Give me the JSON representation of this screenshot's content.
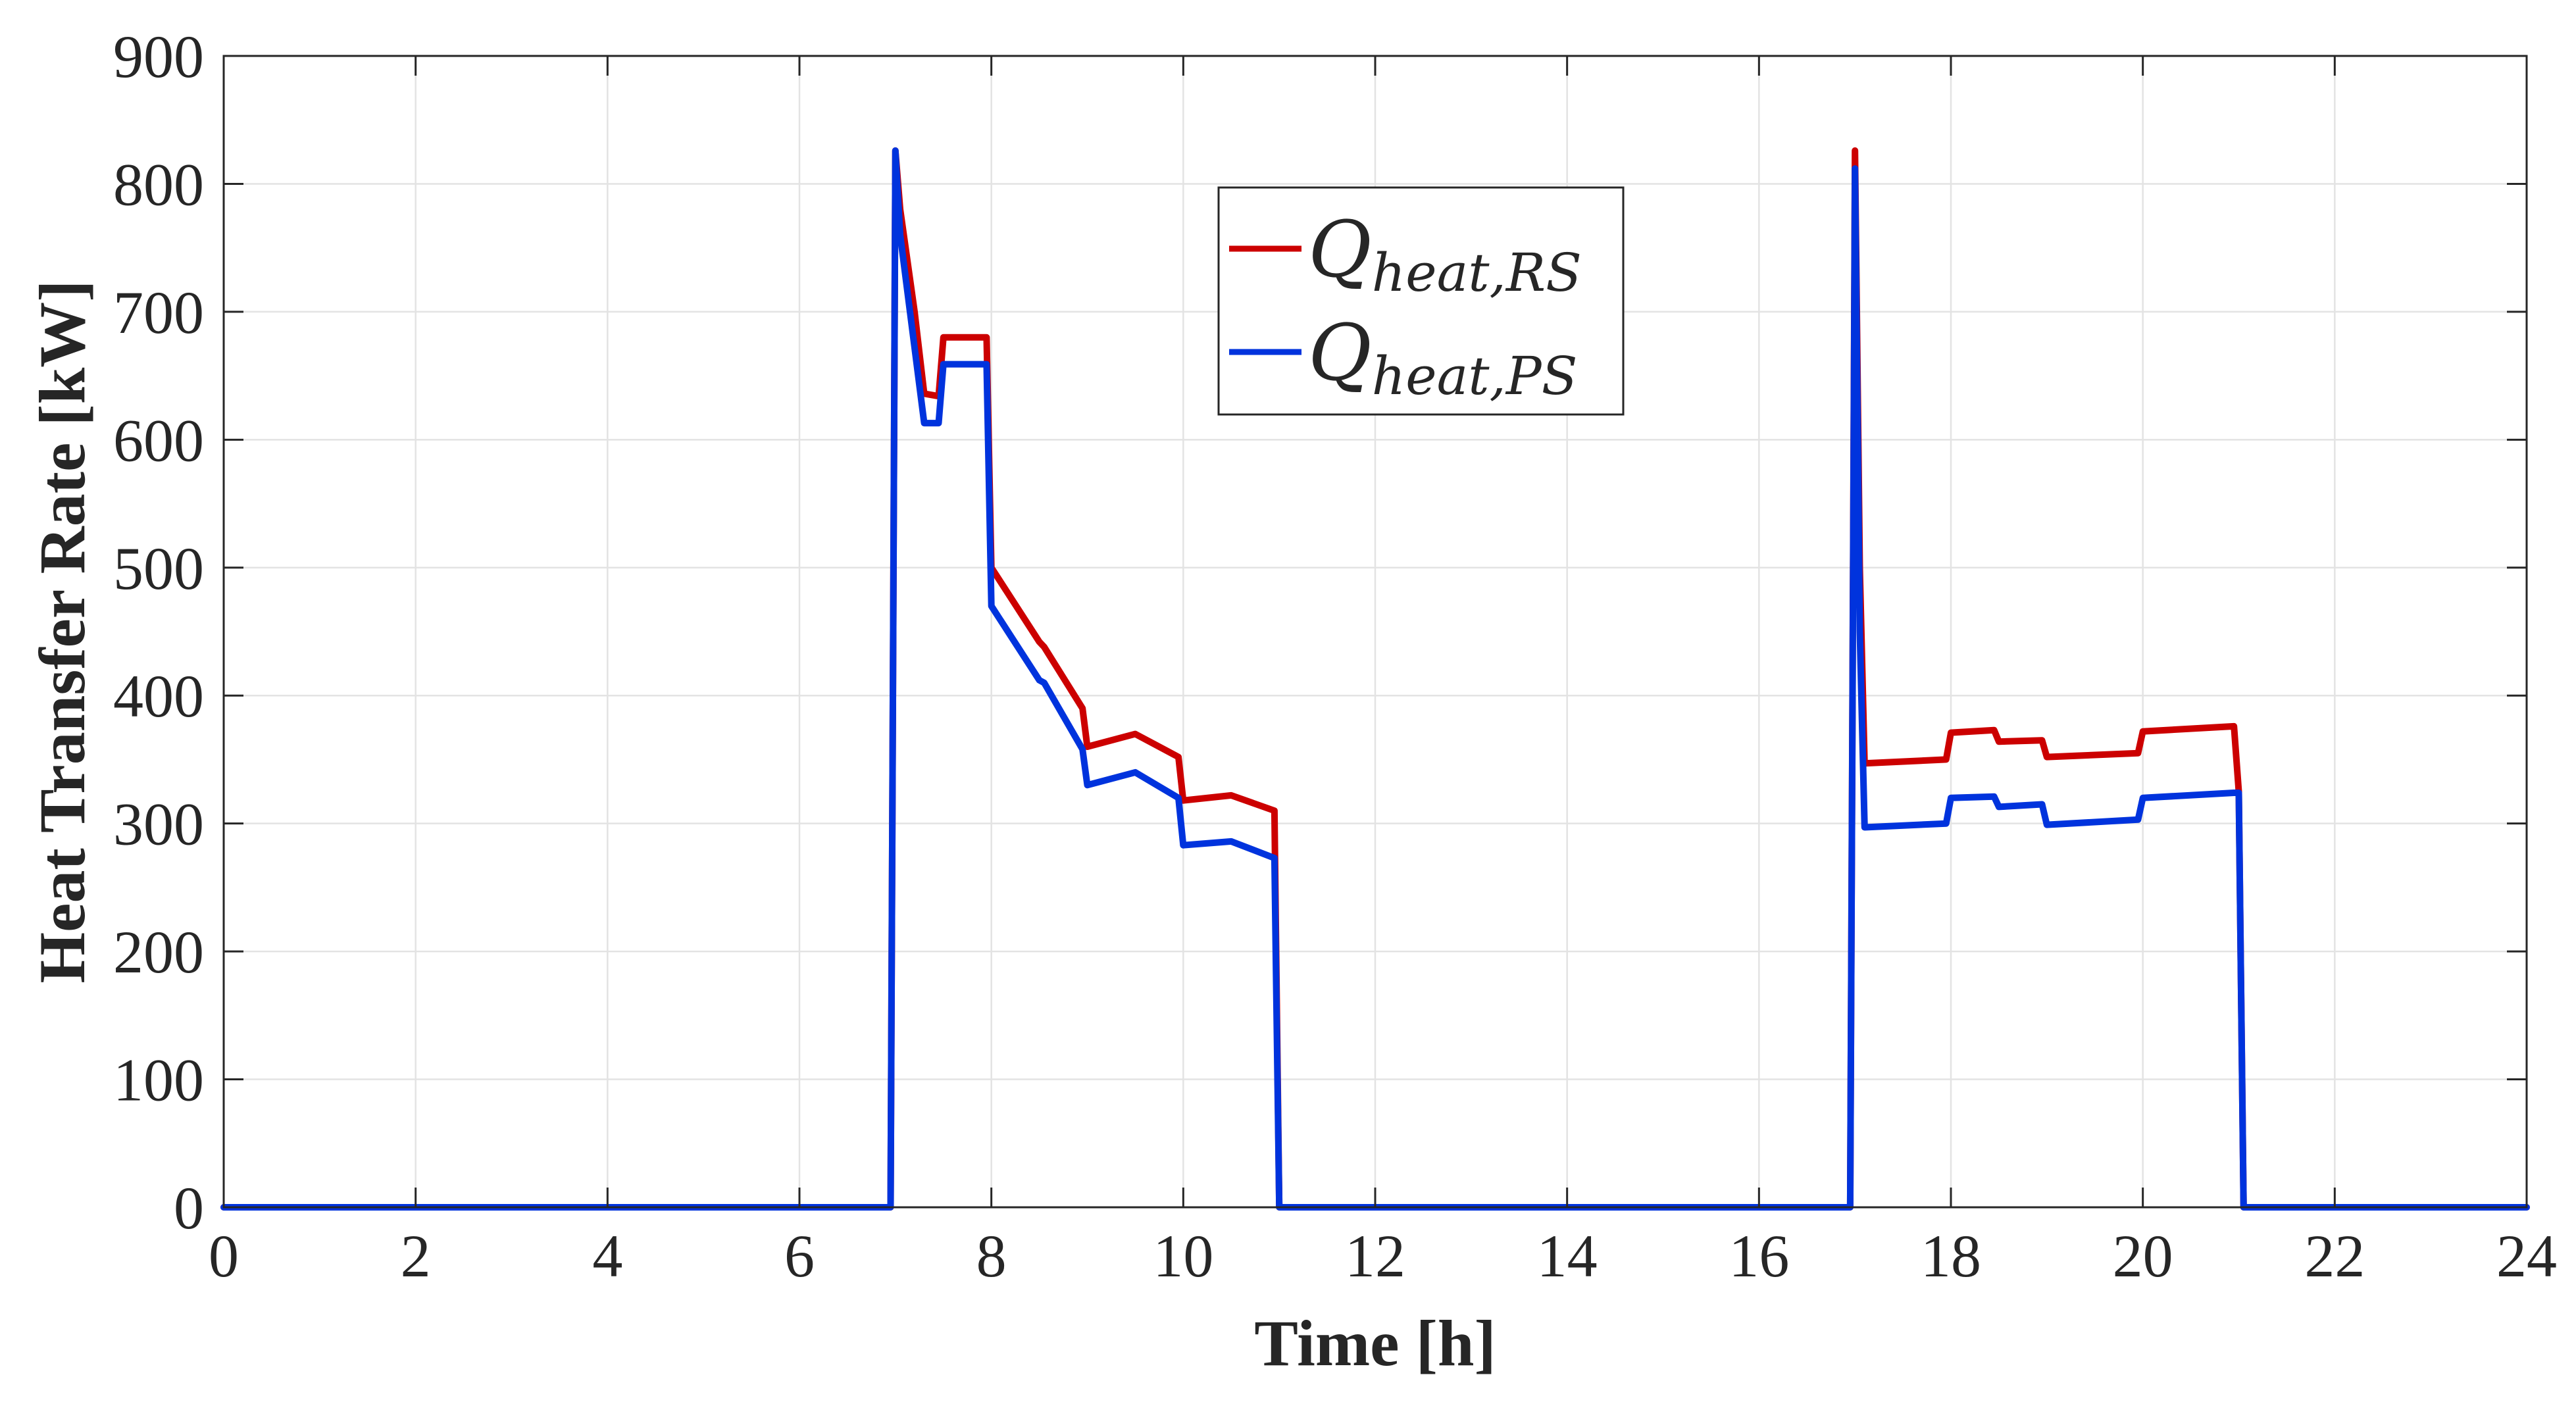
{
  "chart_data": {
    "type": "line",
    "title": "",
    "xlabel": "Time [h]",
    "ylabel": "Heat Transfer Rate [kW]",
    "xlim": [
      0,
      24
    ],
    "ylim": [
      0,
      900
    ],
    "xticks": [
      0,
      2,
      4,
      6,
      8,
      10,
      12,
      14,
      16,
      18,
      20,
      22,
      24
    ],
    "yticks": [
      0,
      100,
      200,
      300,
      400,
      500,
      600,
      700,
      800,
      900
    ],
    "grid": true,
    "legend_position": "top-center",
    "series": [
      {
        "name": "Q_heat,RS",
        "legend_main": "Q",
        "legend_sub": "heat,RS",
        "color": "#cc0000",
        "x": [
          0,
          6.95,
          7.0,
          7.05,
          7.2,
          7.3,
          7.45,
          7.5,
          7.95,
          8.0,
          8.5,
          8.55,
          8.95,
          9.0,
          9.5,
          9.95,
          10.0,
          10.5,
          10.95,
          11.0,
          11.05,
          16.95,
          17.0,
          17.05,
          17.1,
          17.95,
          18.0,
          18.45,
          18.5,
          18.95,
          19.0,
          19.95,
          20.0,
          20.95,
          21.0,
          21.05,
          24
        ],
        "y": [
          0,
          0,
          826,
          780,
          700,
          636,
          634,
          680,
          680,
          500,
          442,
          438,
          390,
          360,
          370,
          352,
          318,
          322,
          310,
          0,
          0,
          0,
          826,
          500,
          347,
          350,
          371,
          373,
          364,
          365,
          352,
          355,
          372,
          376,
          325,
          0,
          0
        ]
      },
      {
        "name": "Q_heat,PS",
        "legend_main": "Q",
        "legend_sub": "heat,PS",
        "color": "#0033dd",
        "x": [
          0,
          6.95,
          7.0,
          7.05,
          7.3,
          7.45,
          7.5,
          7.95,
          8.0,
          8.5,
          8.55,
          8.95,
          9.0,
          9.5,
          9.95,
          10.0,
          10.5,
          10.95,
          11.0,
          11.05,
          16.95,
          17.0,
          17.05,
          17.1,
          17.95,
          18.0,
          18.45,
          18.5,
          18.95,
          19.0,
          19.95,
          20.0,
          20.95,
          21.0,
          21.05,
          24
        ],
        "y": [
          0,
          0,
          826,
          760,
          613,
          613,
          659,
          659,
          470,
          412,
          410,
          358,
          330,
          340,
          320,
          283,
          286,
          273,
          0,
          0,
          0,
          812,
          450,
          297,
          300,
          320,
          321,
          313,
          315,
          299,
          303,
          320,
          324,
          324,
          0,
          0
        ]
      }
    ]
  }
}
